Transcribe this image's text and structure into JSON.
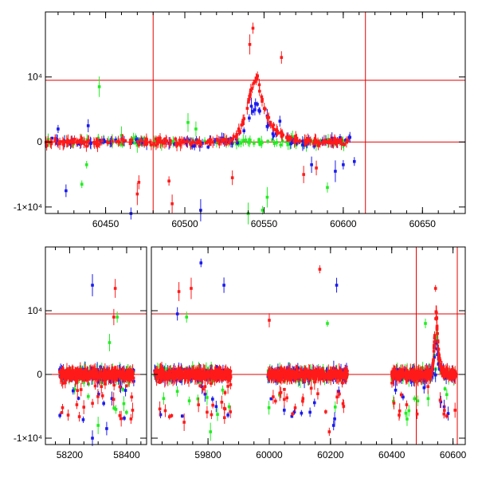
{
  "colors": {
    "red": "#ff1a1a",
    "green": "#22ee22",
    "blue": "#1a1aee",
    "frame": "#000000",
    "guide": "#e60000"
  },
  "chart_data": [
    {
      "type": "scatter",
      "panel": "top",
      "title": "",
      "xlabel": "",
      "ylabel": "",
      "xlim": [
        60412,
        60677
      ],
      "ylim": [
        -11000,
        20000
      ],
      "xticks": [
        "60450",
        "60500",
        "60550",
        "60600",
        "60650"
      ],
      "yticks": [
        {
          "label": "-1×10⁴",
          "value": -10000
        },
        {
          "label": "0",
          "value": 0
        },
        {
          "label": "10⁴",
          "value": 10000
        }
      ],
      "hlines": [
        0,
        9500
      ],
      "vlines": [
        60480,
        60614
      ],
      "series": [
        {
          "color": "red",
          "baseline_x": [
            60412,
            60603
          ],
          "baseline_scatter": 900,
          "flare": {
            "peak_x": 60546,
            "peak_y": 10000,
            "width": 6
          },
          "outliers": [
            [
              60543,
              17500
            ],
            [
              60541,
              15000
            ],
            [
              60561,
              13000
            ],
            [
              60471,
              -6200
            ],
            [
              60490,
              -6000
            ],
            [
              60470,
              -8000
            ],
            [
              60530,
              -5500
            ],
            [
              60575,
              -5000
            ],
            [
              60583,
              -4000
            ],
            [
              60492,
              -9500
            ]
          ]
        },
        {
          "color": "blue",
          "baseline_x": [
            60412,
            60610
          ],
          "baseline_scatter": 1200,
          "outliers": [
            [
              60425,
              -7500
            ],
            [
              60420,
              2000
            ],
            [
              60439,
              2500
            ],
            [
              60560,
              3200
            ],
            [
              60580,
              -3500
            ],
            [
              60595,
              -4500
            ],
            [
              60600,
              -3500
            ],
            [
              60607,
              -3000
            ],
            [
              60542,
              5500
            ],
            [
              60552,
              4000
            ],
            [
              60510,
              -10500
            ],
            [
              60466,
              -11000
            ]
          ]
        },
        {
          "color": "green",
          "baseline_x": [
            60412,
            60605
          ],
          "baseline_scatter": 1000,
          "outliers": [
            [
              60446,
              8500
            ],
            [
              60460,
              1000
            ],
            [
              60470,
              -500
            ],
            [
              60502,
              3000
            ],
            [
              60507,
              2000
            ],
            [
              60540,
              -11000
            ],
            [
              60552,
              -8500
            ],
            [
              60568,
              800
            ],
            [
              60590,
              -7000
            ],
            [
              60435,
              -6500
            ],
            [
              60438,
              -3500
            ],
            [
              60549,
              -10500
            ]
          ]
        }
      ]
    },
    {
      "type": "scatter",
      "panel": "bottom",
      "title": "",
      "xlabel": "",
      "ylabel": "",
      "ylim": [
        -11000,
        20000
      ],
      "xticks": [
        "58200",
        "58400",
        "59800",
        "60000",
        "60200",
        "60400",
        "60600"
      ],
      "yticks": [
        {
          "label": "-1×10⁴",
          "value": -10000
        },
        {
          "label": "0",
          "value": 0
        },
        {
          "label": "10⁴",
          "value": 10000
        }
      ],
      "hlines": [
        0,
        9500
      ],
      "vlines": [
        60480,
        60614
      ],
      "segments": [
        {
          "xlim": [
            58115,
            58470
          ],
          "ticks": [
            58200,
            58400
          ],
          "data_range": [
            58165,
            58425
          ]
        },
        {
          "xlim": [
            59615,
            60640
          ],
          "ticks": [
            59800,
            60000,
            60200,
            60400,
            60600
          ],
          "data_ranges": [
            [
              59625,
              59875
            ],
            [
              59995,
              60255
            ],
            [
              60400,
              60610
            ]
          ],
          "flare_x": 60546
        }
      ],
      "series": [
        {
          "color": "red",
          "outliers": [
            [
              58360,
              13500
            ],
            [
              58355,
              9000
            ],
            [
              59705,
              13000
            ],
            [
              59745,
              13500
            ],
            [
              60000,
              8500
            ],
            [
              60165,
              16500
            ],
            [
              60543,
              13500
            ],
            [
              60196,
              -9000
            ],
            [
              59722,
              -7500
            ]
          ]
        },
        {
          "color": "blue",
          "outliers": [
            [
              58280,
              14000
            ],
            [
              59777,
              17500
            ],
            [
              59852,
              14000
            ],
            [
              60220,
              14000
            ],
            [
              59700,
              9500
            ],
            [
              58330,
              -8500
            ],
            [
              58280,
              -10000
            ],
            [
              60210,
              -8000
            ]
          ]
        },
        {
          "color": "green",
          "outliers": [
            [
              58367,
              9000
            ],
            [
              58340,
              5000
            ],
            [
              59730,
              9000
            ],
            [
              60190,
              8000
            ],
            [
              60510,
              8000
            ],
            [
              58300,
              -8000
            ],
            [
              59808,
              -9000
            ],
            [
              60450,
              -7000
            ]
          ]
        }
      ]
    }
  ]
}
